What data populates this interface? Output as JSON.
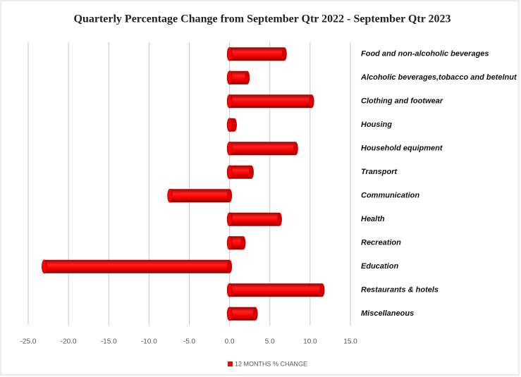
{
  "chart_data": {
    "type": "hbar",
    "title": "Quarterly Percentage Change from September Qtr 2022 - September Qtr 2023",
    "categories": [
      "Food and non-alcoholic beverages",
      "Alcoholic  beverages,tobacco and betelnut",
      "Clothing and footwear",
      "Housing",
      "Household equipment",
      "Transport",
      "Communication",
      "Health",
      "Recreation",
      "Education",
      "Restaurants & hotels",
      "Miscellaneous"
    ],
    "series": [
      {
        "name": "12 MONTHS % CHANGE",
        "color": "#ff0000",
        "values": [
          6.8,
          2.2,
          10.2,
          0.6,
          8.2,
          2.7,
          -7.4,
          6.2,
          1.7,
          -23.0,
          11.5,
          3.2
        ]
      }
    ],
    "xlim": [
      -25,
      15
    ],
    "xticks": [
      {
        "value": -25,
        "label": "-25.0"
      },
      {
        "value": -20,
        "label": "-20.0"
      },
      {
        "value": -15,
        "label": "-15.0"
      },
      {
        "value": -10,
        "label": "-10.0"
      },
      {
        "value": -5,
        "label": "-5.0"
      },
      {
        "value": 0,
        "label": "0.0"
      },
      {
        "value": 5,
        "label": "5.0"
      },
      {
        "value": 10,
        "label": "10.0"
      },
      {
        "value": 15,
        "label": "15.0"
      }
    ],
    "grid": true,
    "legend": "bottom"
  }
}
